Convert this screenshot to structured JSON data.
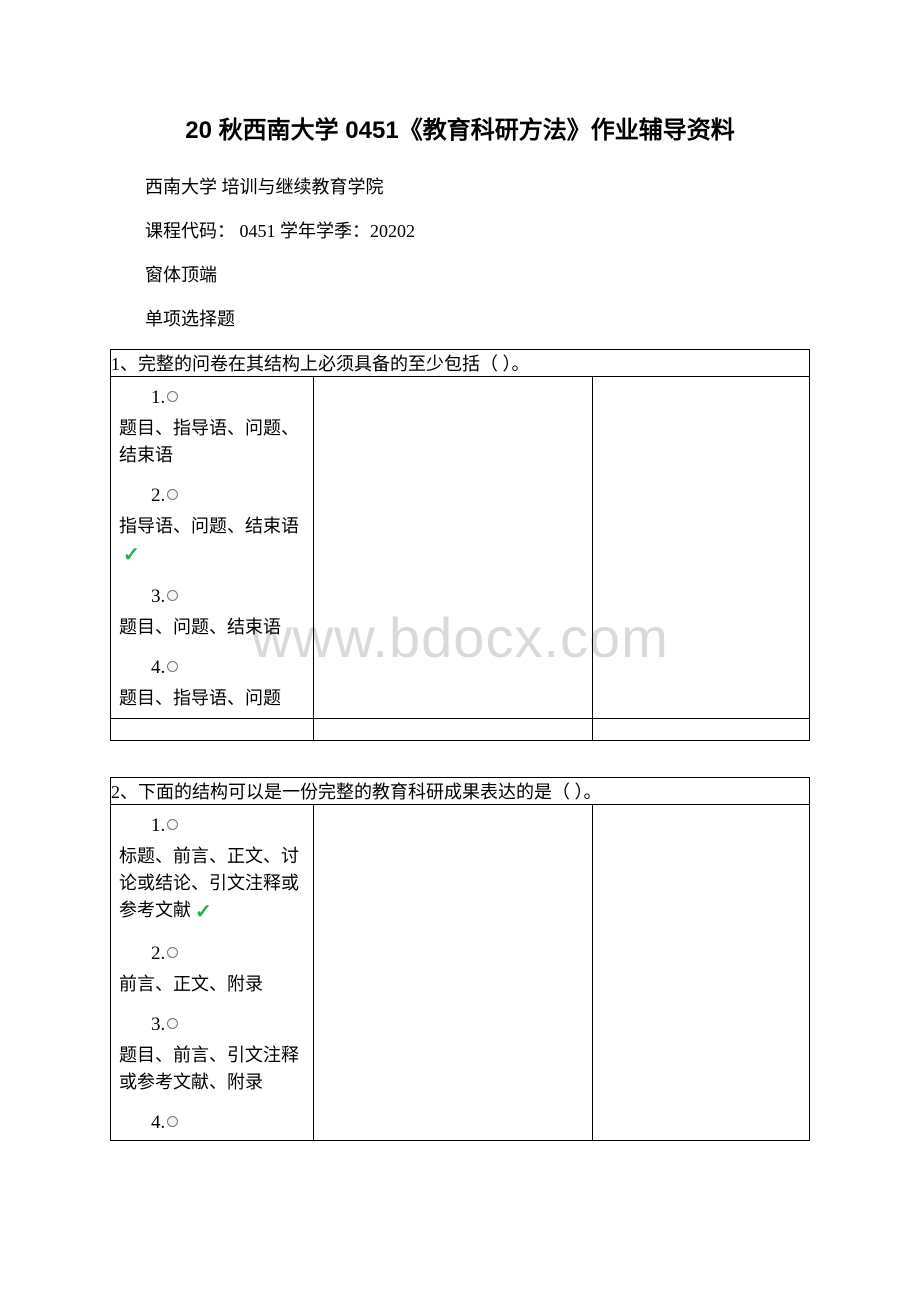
{
  "title": "20 秋西南大学 0451《教育科研方法》作业辅导资料",
  "school_line": "西南大学   培训与继续教育学院",
  "course_line": "课程代码：   0451        学年学季：20202",
  "window_top": "窗体顶端",
  "section_label": "单项选择题",
  "watermark_text": "www.bdocx.com",
  "q1": {
    "header": "1、完整的问卷在其结构上必须具备的至少包括（   ）。",
    "opt1_num": "1.",
    "opt1_text": "题目、指导语、问题、结束语",
    "opt2_num": "2.",
    "opt2_text": "指导语、问题、结束语",
    "opt3_num": "3.",
    "opt3_text": "题目、问题、结束语",
    "opt4_num": "4.",
    "opt4_text": "题目、指导语、问题"
  },
  "q2": {
    "header": "2、下面的结构可以是一份完整的教育科研成果表达的是（   ）。",
    "opt1_num": "1.",
    "opt1_text": "标题、前言、正文、讨论或结论、引文注释或参考文献",
    "opt2_num": "2.",
    "opt2_text": "前言、正文、附录",
    "opt3_num": "3.",
    "opt3_text": "题目、前言、引文注释或参考文献、附录",
    "opt4_num": "4."
  }
}
